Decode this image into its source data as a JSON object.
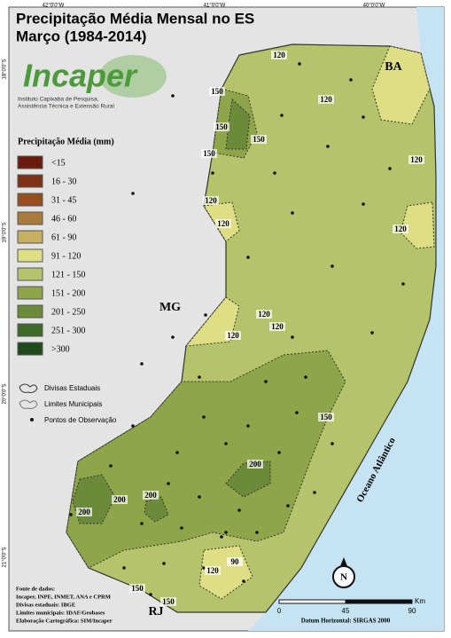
{
  "header": {
    "title": [
      "Precipitação Média Mensal no ES",
      "Março (1984-2014)"
    ]
  },
  "logo": {
    "name": "Incaper",
    "subtitle": [
      "Instituto Capixaba de Pesquisa,",
      "Assistência Técnica e Extensão Rural"
    ]
  },
  "coordinates": {
    "top": [
      "42°0'0\"W",
      "41°0'0\"W",
      "40°0'0\"W"
    ],
    "left": [
      "18°0'0\"S",
      "19°0'0\"S",
      "20°0'0\"S",
      "21°0'0\"S"
    ]
  },
  "legend": {
    "title": "Precipitação Média (mm)",
    "items": [
      {
        "label": "<15",
        "color": "#6b1a0e"
      },
      {
        "label": "16 - 30",
        "color": "#7f3215"
      },
      {
        "label": "31 - 45",
        "color": "#96501e"
      },
      {
        "label": "46 - 60",
        "color": "#a87a3c"
      },
      {
        "label": "61 - 90",
        "color": "#c8b060"
      },
      {
        "label": "91 - 120",
        "color": "#dede84"
      },
      {
        "label": "121 - 150",
        "color": "#b5c46a"
      },
      {
        "label": "151 - 200",
        "color": "#8ea54a"
      },
      {
        "label": "201 - 250",
        "color": "#6c8b3a"
      },
      {
        "label": "251 - 300",
        "color": "#3f6a28"
      },
      {
        "label": ">300",
        "color": "#1f4a1a"
      }
    ],
    "symbols": [
      "Divisas Estaduais",
      "Limites Municipais",
      "Pontos de Observação"
    ]
  },
  "places": {
    "ba": "BA",
    "mg": "MG",
    "rj": "RJ",
    "ocean": "Oceano Atlântico"
  },
  "contour_labels": [
    "120",
    "150",
    "120",
    "150",
    "150",
    "150",
    "120",
    "120",
    "120",
    "120",
    "120",
    "120",
    "120",
    "150",
    "200",
    "200",
    "200",
    "200",
    "90",
    "150",
    "150",
    "120"
  ],
  "source": [
    "Fonte de dados:",
    "Incaper, INPE, INMET, ANA e CPRM",
    "Divisas estaduais: IBGE",
    "Limites municipais: IDAF/Geobases",
    "Elaboração Cartográfica: SIM/Incaper"
  ],
  "scale": {
    "ticks": [
      "0",
      "45",
      "90"
    ],
    "unit": "Km",
    "datum": "Datum Horizontal: SIRGAS 2000"
  },
  "north": "N"
}
